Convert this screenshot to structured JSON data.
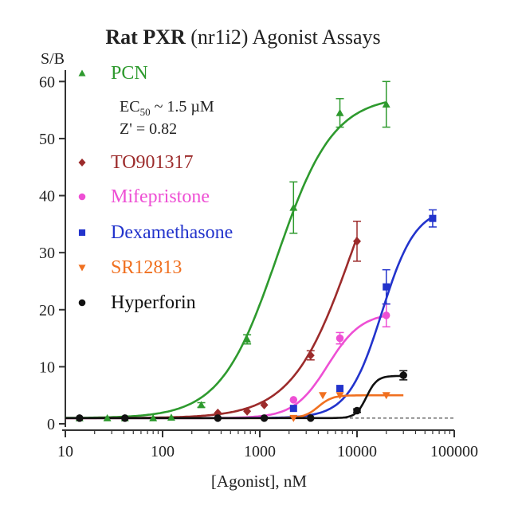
{
  "chart_data": {
    "type": "scatter",
    "title_bold": "Rat PXR",
    "title_rest": "(nr1i2) Agonist Assays",
    "ylabel": "S/B",
    "xlabel": "[Agonist], nM",
    "x_scale": "log",
    "xlim": [
      10,
      100000
    ],
    "ylim": [
      0,
      62
    ],
    "x_ticks": [
      10,
      100,
      1000,
      10000,
      100000
    ],
    "x_tick_labels": [
      "10",
      "100",
      "1000",
      "10000",
      "100000"
    ],
    "y_ticks": [
      0,
      10,
      20,
      30,
      40,
      50,
      60
    ],
    "y_tick_labels": [
      "0",
      "10",
      "20",
      "30",
      "40",
      "50",
      "60"
    ],
    "baseline": 1,
    "legend_position": "top-left",
    "annotation": {
      "ec50_prefix": "EC",
      "ec50_sub": "50",
      "ec50_suffix": " ~ 1.5 µM",
      "zprime": "Z' = 0.82"
    },
    "series": [
      {
        "name": "PCN",
        "color": "#2e9a2e",
        "marker": "triangle-up",
        "points": [
          [
            14,
            1
          ],
          [
            27,
            1
          ],
          [
            41,
            1
          ],
          [
            80,
            1
          ],
          [
            123,
            1.1
          ],
          [
            250,
            3.3
          ],
          [
            741,
            14.8
          ],
          [
            2222,
            37.9
          ],
          [
            6667,
            54.5
          ],
          [
            20000,
            56
          ]
        ],
        "errors": [
          0,
          0,
          0,
          0,
          0,
          0.4,
          0.8,
          4.5,
          2.5,
          4
        ],
        "fit": {
          "bottom": 1,
          "top": 57.5,
          "ec50": 1500,
          "hill": 1.5,
          "xmin": 10,
          "xmax": 20000
        }
      },
      {
        "name": "TO901317",
        "color": "#9c2b2b",
        "marker": "diamond",
        "points": [
          [
            370,
            1.9
          ],
          [
            741,
            2.2
          ],
          [
            1111,
            3.3
          ],
          [
            3333,
            12
          ],
          [
            10000,
            32
          ]
        ],
        "errors": [
          0,
          0,
          0,
          0.8,
          3.5
        ],
        "fit": {
          "bottom": 1,
          "top": 60,
          "ec50": 9000,
          "hill": 1.4,
          "xmin": 10,
          "xmax": 10000
        }
      },
      {
        "name": "Mifepristone",
        "color": "#ee4fd4",
        "marker": "circle",
        "points": [
          [
            2222,
            4.2
          ],
          [
            6667,
            15
          ],
          [
            20000,
            19
          ]
        ],
        "errors": [
          0,
          1,
          2
        ],
        "fit": {
          "bottom": 1,
          "top": 19.5,
          "ec50": 5000,
          "hill": 2.5,
          "xmin": 10,
          "xmax": 20000
        }
      },
      {
        "name": "Dexamethasone",
        "color": "#2233cc",
        "marker": "square",
        "points": [
          [
            2222,
            2.7
          ],
          [
            6667,
            6.2
          ],
          [
            20000,
            24
          ],
          [
            60000,
            36
          ]
        ],
        "errors": [
          0,
          0,
          3,
          1.5
        ],
        "fit": {
          "bottom": 1,
          "top": 38,
          "ec50": 18000,
          "hill": 2.5,
          "xmin": 10,
          "xmax": 60000
        }
      },
      {
        "name": "SR12813",
        "color": "#f07020",
        "marker": "triangle-down",
        "points": [
          [
            2222,
            1
          ],
          [
            4444,
            5
          ],
          [
            6667,
            5
          ],
          [
            20000,
            5
          ]
        ],
        "errors": [
          0,
          0,
          0,
          0
        ],
        "fit": {
          "bottom": 1,
          "top": 5,
          "ec50": 4000,
          "hill": 6,
          "xmin": 10,
          "xmax": 30000
        }
      },
      {
        "name": "Hyperforin",
        "color": "#111111",
        "marker": "circle",
        "points": [
          [
            14,
            1
          ],
          [
            41,
            1
          ],
          [
            370,
            1
          ],
          [
            1111,
            1
          ],
          [
            3333,
            1
          ],
          [
            10000,
            2.3
          ],
          [
            30000,
            8.5
          ]
        ],
        "errors": [
          0,
          0,
          0,
          0,
          0,
          0.3,
          0.8
        ],
        "fit": {
          "bottom": 1,
          "top": 8.4,
          "ec50": 12500,
          "hill": 8,
          "xmin": 10,
          "xmax": 30000
        }
      }
    ]
  }
}
